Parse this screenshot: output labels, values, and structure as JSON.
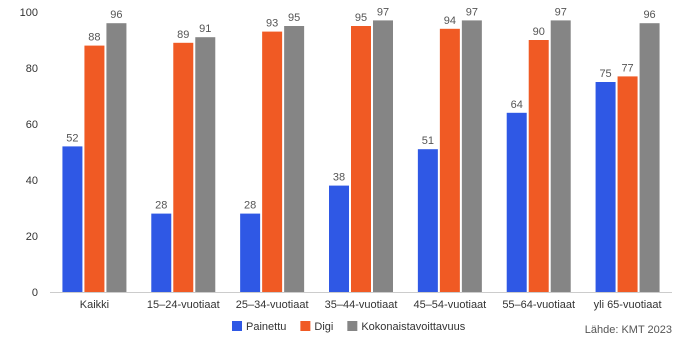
{
  "chart_data": {
    "type": "bar",
    "categories": [
      "Kaikki",
      "15–24-vuotiaat",
      "25–34-vuotiaat",
      "35–44-vuotiaat",
      "45–54-vuotiaat",
      "55–64-vuotiaat",
      "yli 65-vuotiaat"
    ],
    "series": [
      {
        "name": "Painettu",
        "color": "#2f58e5",
        "values": [
          52,
          28,
          28,
          38,
          51,
          64,
          75
        ]
      },
      {
        "name": "Digi",
        "color": "#f05a24",
        "values": [
          88,
          89,
          93,
          95,
          94,
          90,
          77
        ]
      },
      {
        "name": "Kokonaistavoittavuus",
        "color": "#858585",
        "values": [
          96,
          91,
          95,
          97,
          97,
          97,
          96
        ]
      }
    ],
    "ylim": [
      0,
      100
    ],
    "yticks": [
      0,
      20,
      40,
      60,
      80,
      100
    ],
    "grid": false,
    "legend_position": "bottom",
    "source": "Lähde: KMT 2023"
  }
}
